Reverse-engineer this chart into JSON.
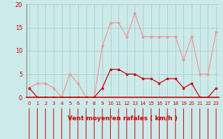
{
  "x": [
    0,
    1,
    2,
    3,
    4,
    5,
    6,
    7,
    8,
    9,
    10,
    11,
    12,
    13,
    14,
    15,
    16,
    17,
    18,
    19,
    20,
    21,
    22,
    23
  ],
  "wind_avg": [
    2,
    0,
    0,
    0,
    0,
    0,
    0,
    0,
    0,
    2,
    6,
    6,
    5,
    5,
    4,
    4,
    3,
    4,
    4,
    2,
    3,
    0,
    0,
    2
  ],
  "wind_gust": [
    2,
    3,
    3,
    2,
    0,
    5,
    3,
    0,
    0,
    11,
    16,
    16,
    13,
    18,
    13,
    13,
    13,
    13,
    13,
    8,
    13,
    5,
    5,
    14
  ],
  "xlabel": "Vent moyen/en rafales ( km/h )",
  "xlim": [
    -0.3,
    23.3
  ],
  "ylim": [
    0,
    20
  ],
  "yticks": [
    0,
    5,
    10,
    15,
    20
  ],
  "xticks": [
    0,
    1,
    2,
    3,
    4,
    5,
    6,
    7,
    8,
    9,
    10,
    11,
    12,
    13,
    14,
    15,
    16,
    17,
    18,
    19,
    20,
    21,
    22,
    23
  ],
  "bg_color": "#cceaea",
  "grid_color": "#aacccc",
  "avg_color": "#cc0000",
  "gust_color": "#ee9999",
  "tick_label_color": "#cc0000",
  "xlabel_color": "#cc0000",
  "yaxis_line_color": "#888888"
}
